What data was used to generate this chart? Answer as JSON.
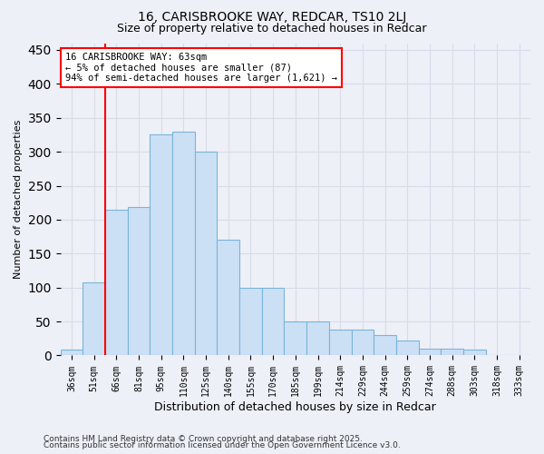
{
  "title1": "16, CARISBROOKE WAY, REDCAR, TS10 2LJ",
  "title2": "Size of property relative to detached houses in Redcar",
  "xlabel": "Distribution of detached houses by size in Redcar",
  "ylabel": "Number of detached properties",
  "categories": [
    "36sqm",
    "51sqm",
    "66sqm",
    "81sqm",
    "95sqm",
    "110sqm",
    "125sqm",
    "140sqm",
    "155sqm",
    "170sqm",
    "185sqm",
    "199sqm",
    "214sqm",
    "229sqm",
    "244sqm",
    "259sqm",
    "274sqm",
    "288sqm",
    "303sqm",
    "318sqm",
    "333sqm"
  ],
  "values": [
    8,
    107,
    215,
    218,
    325,
    330,
    300,
    170,
    100,
    100,
    50,
    50,
    38,
    38,
    30,
    22,
    10,
    10,
    8,
    0
  ],
  "bar_color": "#cce0f5",
  "bar_edge_color": "#7ab4d8",
  "vline_color": "red",
  "vline_x": 1.5,
  "annotation_text": "16 CARISBROOKE WAY: 63sqm\n← 5% of detached houses are smaller (87)\n94% of semi-detached houses are larger (1,621) →",
  "annotation_box_color": "white",
  "annotation_box_edge": "red",
  "ylim": [
    0,
    460
  ],
  "yticks": [
    0,
    50,
    100,
    150,
    200,
    250,
    300,
    350,
    400,
    450
  ],
  "footer1": "Contains HM Land Registry data © Crown copyright and database right 2025.",
  "footer2": "Contains public sector information licensed under the Open Government Licence v3.0.",
  "bg_color": "#eef0f8",
  "grid_color": "#d8dce8"
}
